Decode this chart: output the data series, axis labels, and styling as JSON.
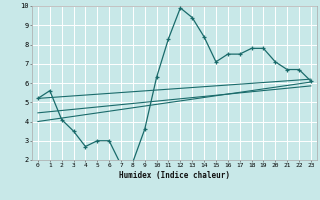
{
  "xlabel": "Humidex (Indice chaleur)",
  "bg_color": "#c8e8e8",
  "grid_color": "#ffffff",
  "line_color": "#1a6b6b",
  "xlim": [
    -0.5,
    23.5
  ],
  "ylim": [
    2,
    10
  ],
  "xticks": [
    0,
    1,
    2,
    3,
    4,
    5,
    6,
    7,
    8,
    9,
    10,
    11,
    12,
    13,
    14,
    15,
    16,
    17,
    18,
    19,
    20,
    21,
    22,
    23
  ],
  "yticks": [
    2,
    3,
    4,
    5,
    6,
    7,
    8,
    9,
    10
  ],
  "main_line_x": [
    0,
    1,
    2,
    3,
    4,
    5,
    6,
    7,
    8,
    9,
    10,
    11,
    12,
    13,
    14,
    15,
    16,
    17,
    18,
    19,
    20,
    21,
    22,
    23
  ],
  "main_line_y": [
    5.2,
    5.6,
    4.1,
    3.5,
    2.7,
    3.0,
    3.0,
    1.75,
    1.9,
    3.6,
    6.3,
    8.3,
    9.9,
    9.4,
    8.4,
    7.1,
    7.5,
    7.5,
    7.8,
    7.8,
    7.1,
    6.7,
    6.7,
    6.1
  ],
  "trend1_x": [
    0,
    23
  ],
  "trend1_y": [
    5.2,
    6.2
  ],
  "trend2_x": [
    0,
    23
  ],
  "trend2_y": [
    4.45,
    5.85
  ],
  "trend3_x": [
    0,
    23
  ],
  "trend3_y": [
    4.0,
    6.05
  ]
}
